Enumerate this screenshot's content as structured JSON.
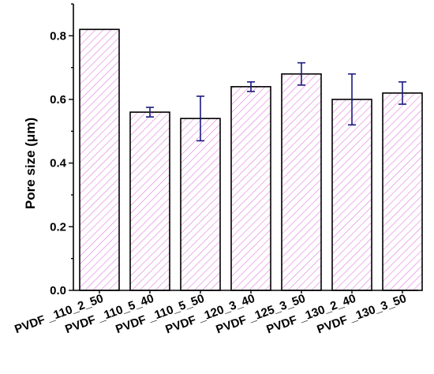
{
  "chart_data": {
    "type": "bar",
    "title": "",
    "xlabel": "",
    "ylabel": "Pore size (μm)",
    "ylim": [
      0,
      0.9
    ],
    "yticks": [
      0.0,
      0.2,
      0.4,
      0.6,
      0.8
    ],
    "categories": [
      "PVDF _110_2_50",
      "PVDF _110_5_40",
      "PVDF _110_5_50",
      "PVDF _120_3_40",
      "PVDF _125_3_50",
      "PVDF _130_2_40",
      "PVDF _130_3_50"
    ],
    "values": [
      0.82,
      0.56,
      0.54,
      0.64,
      0.68,
      0.6,
      0.62
    ],
    "errors": [
      null,
      0.015,
      0.07,
      0.015,
      0.035,
      0.08,
      0.035
    ],
    "grid": false,
    "bar_fill": "hatched",
    "colors": {
      "hatch": "#e27adf",
      "bar_outline": "#000000",
      "error_bar": "#1a1a80",
      "axis": "#000000"
    }
  }
}
